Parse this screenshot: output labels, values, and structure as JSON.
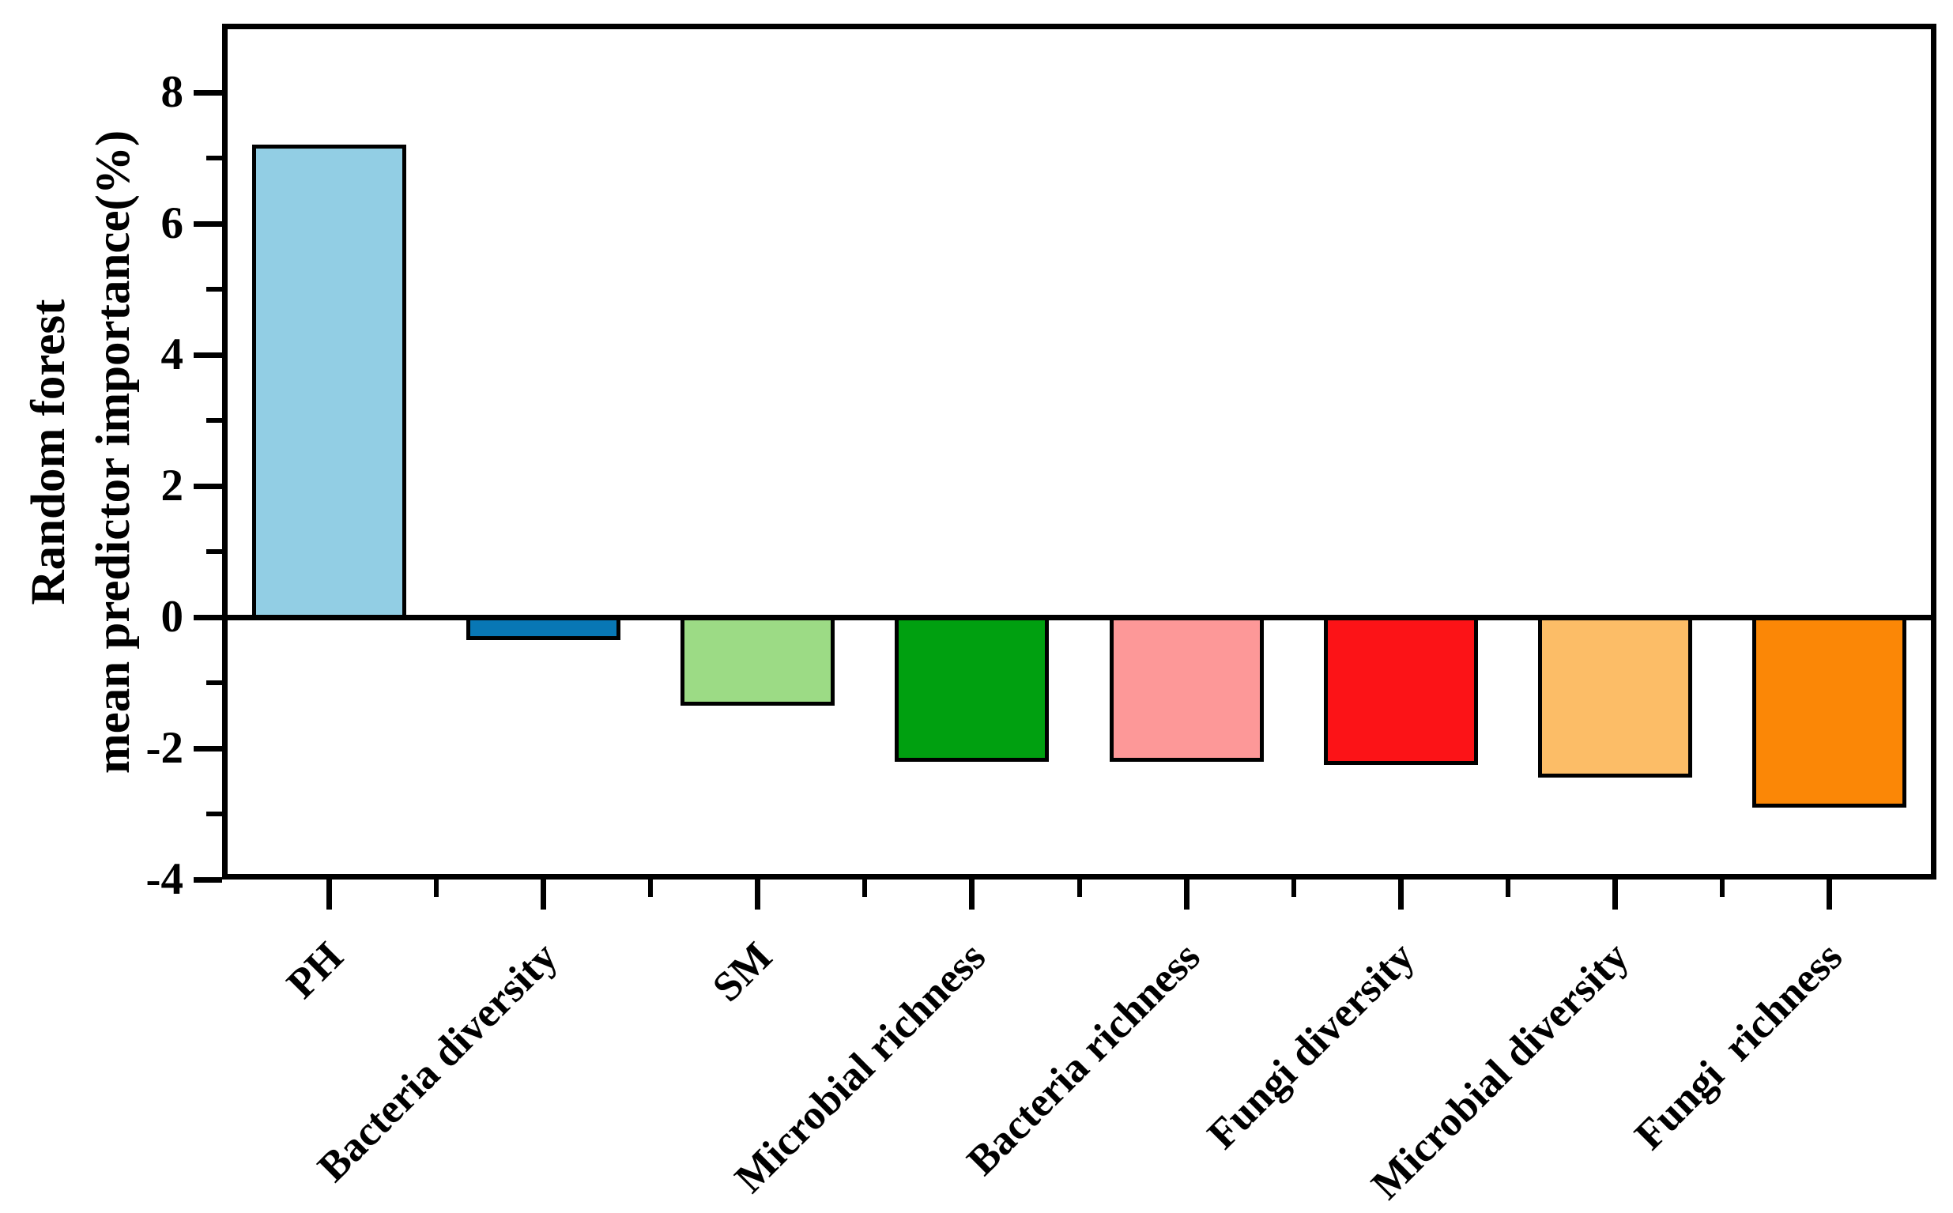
{
  "figure": {
    "background": "#ffffff",
    "frame_color": "#000000"
  },
  "chart_data": {
    "type": "bar",
    "title": "",
    "ylabel_lines": [
      "Random forest",
      "mean predictor importance(%)"
    ],
    "ylabel": "Random forest mean predictor importance(%)",
    "categories": [
      "PH",
      "Bacteria diversity",
      "SM",
      "Microbial richness",
      "Bacteria richness",
      "Fungi diversity",
      "Microbial diversity",
      "Fungi  richness"
    ],
    "values": [
      7.2,
      -0.35,
      -1.35,
      -2.2,
      -2.2,
      -2.25,
      -2.45,
      -2.9
    ],
    "bar_colors": [
      "#92CEE4",
      "#0877B5",
      "#9CDB85",
      "#00A010",
      "#FD9898",
      "#FC1317",
      "#FCBD67",
      "#FB8706"
    ],
    "bar_edge_color": "#000000",
    "ylim": [
      -4,
      9.05
    ],
    "yticks_major": [
      8,
      6,
      4,
      2,
      0,
      -2,
      -4
    ],
    "yticks_minor": [
      7,
      5,
      3,
      1,
      -1,
      -3
    ],
    "ytick_labels": [
      "8",
      "6",
      "4",
      "2",
      "0",
      "-2",
      "-4"
    ],
    "xlabel_rotation_deg": 45,
    "grid": false,
    "legend": "none"
  }
}
